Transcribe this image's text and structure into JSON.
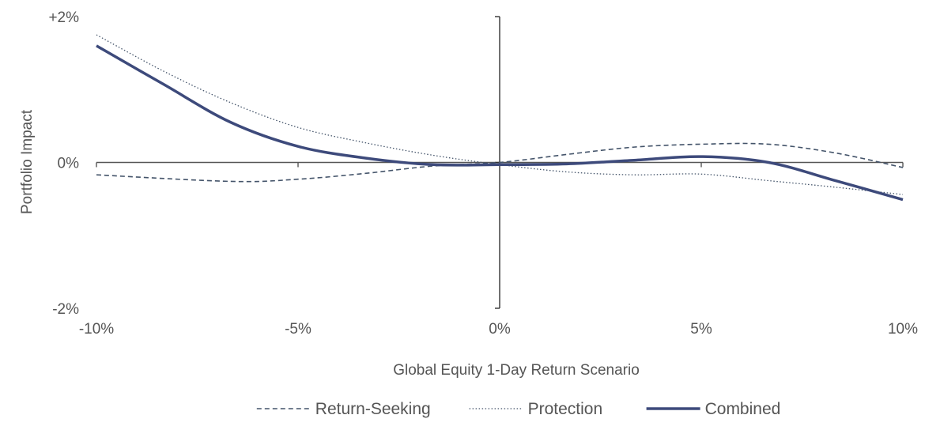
{
  "chart_data": {
    "type": "line",
    "xlabel": "Global Equity 1-Day Return Scenario",
    "ylabel": "Portfolio Impact",
    "xlim": [
      -10,
      10
    ],
    "ylim": [
      -2,
      2
    ],
    "x_ticks": [
      -10,
      -5,
      0,
      5,
      10
    ],
    "x_tick_labels": [
      "-10%",
      "-5%",
      "0%",
      "5%",
      "10%"
    ],
    "y_ticks": [
      2,
      0,
      -2
    ],
    "y_tick_labels": [
      "+2%",
      "0%",
      "-2%"
    ],
    "legend_position": "bottom",
    "series": [
      {
        "name": "Return-Seeking",
        "style": "dashed",
        "color": "#44546a",
        "x": [
          -10,
          -6.67,
          -5,
          -3.33,
          -1.67,
          0,
          1.67,
          3.33,
          5,
          6.67,
          8.33,
          10
        ],
        "y": [
          -0.17,
          -0.26,
          -0.23,
          -0.15,
          -0.05,
          0.0,
          0.11,
          0.21,
          0.25,
          0.25,
          0.13,
          -0.07
        ]
      },
      {
        "name": "Protection",
        "style": "dotted",
        "color": "#44546a",
        "x": [
          -10,
          -8.33,
          -6.67,
          -5,
          -3.33,
          -1.67,
          0,
          1.67,
          3.33,
          5,
          6.67,
          8.33,
          10
        ],
        "y": [
          1.75,
          1.25,
          0.82,
          0.48,
          0.27,
          0.1,
          -0.03,
          -0.13,
          -0.17,
          -0.16,
          -0.25,
          -0.34,
          -0.44
        ]
      },
      {
        "name": "Combined",
        "style": "solid",
        "color": "#3d4a7b",
        "x": [
          -10,
          -8.33,
          -6.67,
          -5,
          -3.33,
          -1.67,
          0,
          1.67,
          3.33,
          5,
          6.67,
          8.33,
          10
        ],
        "y": [
          1.6,
          1.07,
          0.55,
          0.22,
          0.06,
          -0.03,
          -0.03,
          -0.02,
          0.03,
          0.08,
          0.0,
          -0.25,
          -0.51
        ]
      }
    ]
  }
}
